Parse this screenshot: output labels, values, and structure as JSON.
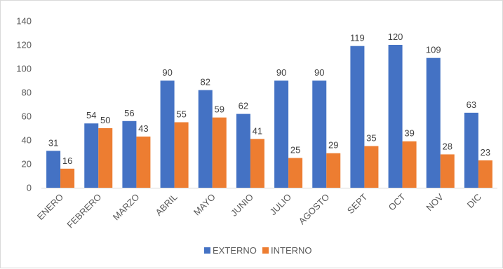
{
  "chart_data": {
    "type": "bar",
    "title": "",
    "xlabel": "",
    "ylabel": "",
    "ylim": [
      0,
      140
    ],
    "yticks": [
      0,
      20,
      40,
      60,
      80,
      100,
      120,
      140
    ],
    "grid": false,
    "legend_position": "bottom",
    "categories": [
      "ENERO",
      "FEBRERO",
      "MARZO",
      "ABRIL",
      "MAYO",
      "JUNIO",
      "JULIO",
      "AGOSTO",
      "SEPT",
      "OCT",
      "NOV",
      "DIC"
    ],
    "series": [
      {
        "name": "EXTERNO",
        "color": "#4472C4",
        "values": [
          31,
          54,
          56,
          90,
          82,
          62,
          90,
          90,
          119,
          120,
          109,
          63
        ]
      },
      {
        "name": "INTERNO",
        "color": "#ED7D31",
        "values": [
          16,
          50,
          43,
          55,
          59,
          41,
          25,
          29,
          35,
          39,
          28,
          23
        ]
      }
    ]
  }
}
